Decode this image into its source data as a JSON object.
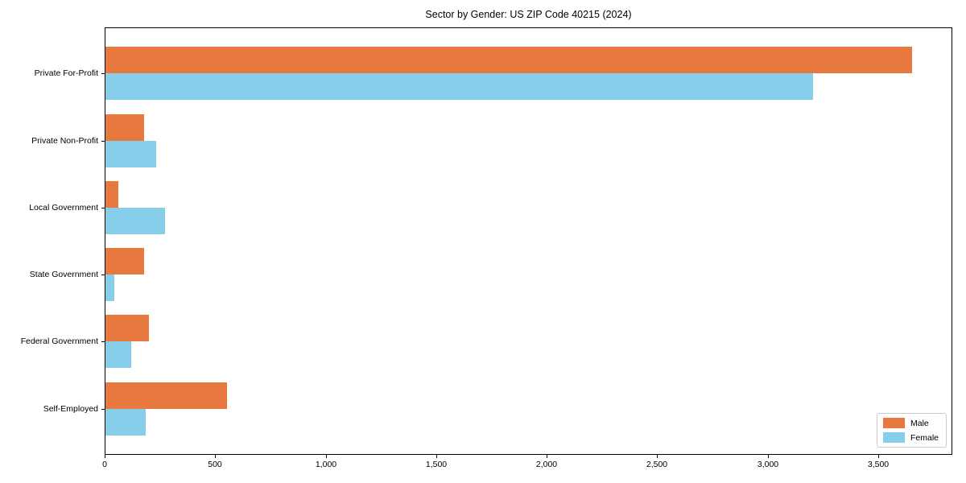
{
  "title": "Sector by Gender: US ZIP Code 40215 (2024)",
  "colors": {
    "male": "#e8793e",
    "female": "#87ceeb",
    "axis": "#000000",
    "legend_border": "#cccccc",
    "background": "#ffffff"
  },
  "legend": {
    "entries": [
      {
        "label": "Male",
        "color": "#e8793e"
      },
      {
        "label": "Female",
        "color": "#87ceeb"
      }
    ],
    "position": "lower right"
  },
  "chart_data": {
    "type": "bar",
    "orientation": "horizontal",
    "title": "Sector by Gender: US ZIP Code 40215 (2024)",
    "xlabel": "",
    "ylabel": "",
    "categories": [
      "Private For-Profit",
      "Private Non-Profit",
      "Local Government",
      "State Government",
      "Federal Government",
      "Self-Employed"
    ],
    "series": [
      {
        "name": "Male",
        "color": "#e8793e",
        "values": [
          3650,
          175,
          58,
          175,
          197,
          550
        ]
      },
      {
        "name": "Female",
        "color": "#87ceeb",
        "values": [
          3200,
          230,
          270,
          40,
          117,
          182
        ]
      }
    ],
    "xlim": [
      0,
      3835
    ],
    "xticks": [
      0,
      500,
      1000,
      1500,
      2000,
      2500,
      3000,
      3500
    ],
    "xtick_labels": [
      "0",
      "500",
      "1,000",
      "1,500",
      "2,000",
      "2,500",
      "3,000",
      "3,500"
    ],
    "grid": false,
    "legend_position": "lower right"
  }
}
